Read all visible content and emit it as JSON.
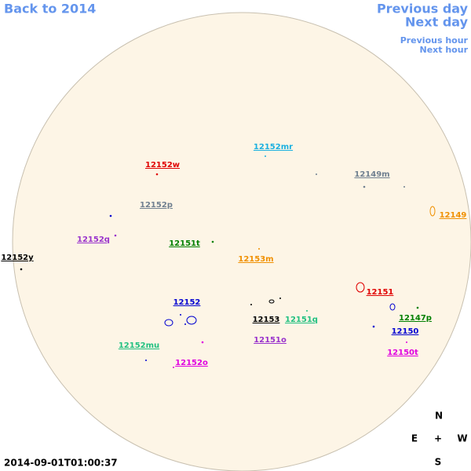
{
  "nav": {
    "back": "Back to 2014",
    "previous_day": "Previous day",
    "next_day": "Next day",
    "previous_hour": "Previous hour",
    "next_hour": "Next hour"
  },
  "regions": [
    {
      "label": "12152mr",
      "color": "#1ab0e0"
    },
    {
      "label": "12152w",
      "color": "#e00000"
    },
    {
      "label": "12149m",
      "color": "#708090"
    },
    {
      "label": "12152p",
      "color": "#708090"
    },
    {
      "label": "12149",
      "color": "#f09000"
    },
    {
      "label": "12152q",
      "color": "#9932cc"
    },
    {
      "label": "12151t",
      "color": "#008000"
    },
    {
      "label": "12152y",
      "color": "#000000"
    },
    {
      "label": "12153m",
      "color": "#f09000"
    },
    {
      "label": "12152",
      "color": "#0000d0"
    },
    {
      "label": "12151",
      "color": "#e00000"
    },
    {
      "label": "12153",
      "color": "#000000"
    },
    {
      "label": "12151q",
      "color": "#20c080"
    },
    {
      "label": "12147p",
      "color": "#008000"
    },
    {
      "label": "12150",
      "color": "#0000d0"
    },
    {
      "label": "12151o",
      "color": "#9932cc"
    },
    {
      "label": "12152mu",
      "color": "#20c080"
    },
    {
      "label": "12150t",
      "color": "#e000e0"
    },
    {
      "label": "12152o",
      "color": "#e000e0"
    }
  ],
  "compass": {
    "north": "N",
    "east": "E",
    "center": "+",
    "west": "W",
    "south": "S"
  },
  "timestamp": "2014-09-01T01:00:37"
}
